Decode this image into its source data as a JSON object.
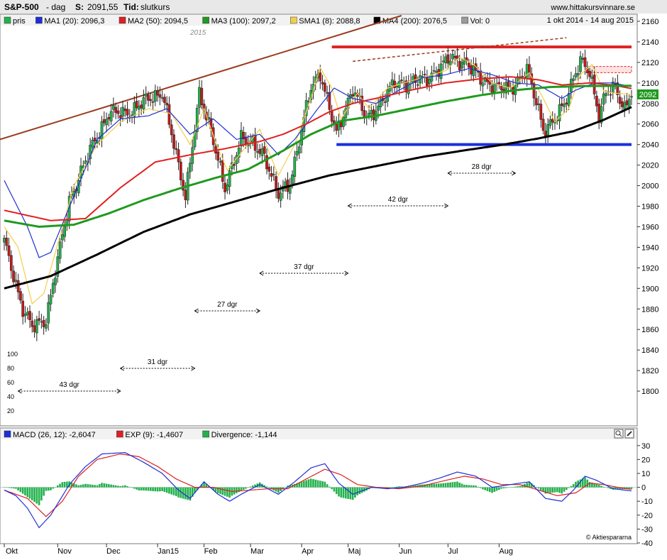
{
  "header": {
    "symbol": "S&P-500",
    "interval": "- dag",
    "s_label": "S:",
    "s_value": "2091,55",
    "tid_label": "Tid:",
    "tid_value": "slutkurs",
    "site": "www.hittakursvinnare.se"
  },
  "legend": {
    "items": [
      {
        "label": "pris",
        "color": "#22b14c"
      },
      {
        "label": "MA1 (20): 2096,3",
        "color": "#1e2fd6"
      },
      {
        "label": "MA2 (50): 2094,5",
        "color": "#e02020"
      },
      {
        "label": "MA3 (100): 2097,2",
        "color": "#1f9a1f"
      },
      {
        "label": "SMA1 (8): 2088,8",
        "color": "#f2cf4a"
      },
      {
        "label": "MA4 (200): 2076,5",
        "color": "#000000"
      },
      {
        "label": "Vol: 0",
        "color": "#9a9a9a"
      }
    ],
    "date_range": "1 okt 2014 - 14 aug 2015"
  },
  "macd_legend": {
    "items": [
      {
        "label": "MACD (26, 12): -2,6047",
        "color": "#1e2fd6"
      },
      {
        "label": "EXP (9): -1,4607",
        "color": "#e02020"
      },
      {
        "label": "Divergence: -1,144",
        "color": "#22b14c"
      }
    ]
  },
  "watermark": "2015",
  "copyright": "© Aktiespararna",
  "last_price_tag": "2092",
  "colors": {
    "up": "#22b14c",
    "down": "#c41a1a",
    "ma20": "#1e2fd6",
    "ma50": "#e02020",
    "ma100": "#1f9a1f",
    "sma8": "#f2cf4a",
    "ma200": "#000000",
    "resistance": "#e02020",
    "support": "#1a2fe0",
    "trendline": "#9a3a1c"
  },
  "chart_data": {
    "type": "candlestick",
    "price_axis": {
      "ylim": [
        1780,
        2160
      ],
      "ticks": [
        1800,
        1820,
        1840,
        1860,
        1880,
        1900,
        1920,
        1940,
        1960,
        1980,
        2000,
        2020,
        2040,
        2060,
        2080,
        2100,
        2120,
        2140,
        2160
      ]
    },
    "macd_axis": {
      "ylim": [
        -40,
        35
      ],
      "ticks": [
        -40,
        -30,
        -20,
        -10,
        0,
        10,
        20,
        30
      ]
    },
    "month_labels": [
      "Okt",
      "Nov",
      "Dec",
      "Jan15",
      "Feb",
      "Mar",
      "Apr",
      "Maj",
      "Jun",
      "Jul",
      "Aug"
    ],
    "volume_scale_labels": [
      "100",
      "80",
      "60",
      "40",
      "20"
    ],
    "anchors": {
      "price": [
        [
          0,
          1945
        ],
        [
          8,
          1880
        ],
        [
          12,
          1862
        ],
        [
          18,
          1870
        ],
        [
          28,
          1985
        ],
        [
          38,
          2040
        ],
        [
          45,
          2070
        ],
        [
          55,
          2072
        ],
        [
          62,
          2085
        ],
        [
          68,
          2090
        ],
        [
          78,
          1990
        ],
        [
          84,
          2088
        ],
        [
          89,
          2055
        ],
        [
          95,
          1995
        ],
        [
          102,
          2048
        ],
        [
          112,
          2030
        ],
        [
          118,
          1990
        ],
        [
          123,
          2003
        ],
        [
          132,
          2095
        ],
        [
          136,
          2110
        ],
        [
          140,
          2075
        ],
        [
          143,
          2050
        ],
        [
          150,
          2095
        ],
        [
          156,
          2065
        ],
        [
          162,
          2080
        ],
        [
          168,
          2100
        ],
        [
          175,
          2100
        ],
        [
          182,
          2105
        ],
        [
          188,
          2115
        ],
        [
          192,
          2125
        ],
        [
          198,
          2120
        ],
        [
          205,
          2105
        ],
        [
          212,
          2095
        ],
        [
          218,
          2095
        ],
        [
          225,
          2112
        ],
        [
          230,
          2075
        ],
        [
          232,
          2055
        ],
        [
          236,
          2060
        ],
        [
          241,
          2080
        ],
        [
          245,
          2105
        ],
        [
          248,
          2120
        ],
        [
          252,
          2110
        ],
        [
          256,
          2070
        ],
        [
          259,
          2090
        ],
        [
          263,
          2095
        ],
        [
          267,
          2075
        ],
        [
          270,
          2092
        ]
      ]
    },
    "moving_averages": {
      "MA20": [
        [
          0,
          2005
        ],
        [
          10,
          1960
        ],
        [
          15,
          1930
        ],
        [
          20,
          1935
        ],
        [
          30,
          1990
        ],
        [
          40,
          2045
        ],
        [
          50,
          2065
        ],
        [
          62,
          2068
        ],
        [
          70,
          2075
        ],
        [
          80,
          2050
        ],
        [
          90,
          2065
        ],
        [
          100,
          2045
        ],
        [
          110,
          2050
        ],
        [
          118,
          2030
        ],
        [
          125,
          2045
        ],
        [
          135,
          2075
        ],
        [
          142,
          2095
        ],
        [
          150,
          2085
        ],
        [
          160,
          2080
        ],
        [
          170,
          2093
        ],
        [
          180,
          2105
        ],
        [
          190,
          2108
        ],
        [
          200,
          2114
        ],
        [
          210,
          2108
        ],
        [
          220,
          2100
        ],
        [
          230,
          2098
        ],
        [
          240,
          2085
        ],
        [
          246,
          2093
        ],
        [
          254,
          2100
        ],
        [
          262,
          2100
        ],
        [
          270,
          2096.3
        ]
      ],
      "MA50": [
        [
          0,
          1976
        ],
        [
          20,
          1966
        ],
        [
          35,
          1968
        ],
        [
          50,
          1998
        ],
        [
          65,
          2023
        ],
        [
          80,
          2030
        ],
        [
          95,
          2036
        ],
        [
          110,
          2043
        ],
        [
          120,
          2050
        ],
        [
          130,
          2060
        ],
        [
          140,
          2072
        ],
        [
          150,
          2080
        ],
        [
          160,
          2085
        ],
        [
          175,
          2093
        ],
        [
          190,
          2100
        ],
        [
          205,
          2104
        ],
        [
          218,
          2106
        ],
        [
          230,
          2103
        ],
        [
          240,
          2098
        ],
        [
          252,
          2100
        ],
        [
          262,
          2098
        ],
        [
          270,
          2094.5
        ]
      ],
      "MA100": [
        [
          0,
          1966
        ],
        [
          15,
          1960
        ],
        [
          30,
          1962
        ],
        [
          45,
          1973
        ],
        [
          60,
          1986
        ],
        [
          75,
          1997
        ],
        [
          90,
          2007
        ],
        [
          105,
          2016
        ],
        [
          120,
          2034
        ],
        [
          132,
          2050
        ],
        [
          145,
          2063
        ],
        [
          160,
          2068
        ],
        [
          175,
          2075
        ],
        [
          190,
          2082
        ],
        [
          205,
          2088
        ],
        [
          220,
          2093
        ],
        [
          235,
          2096
        ],
        [
          250,
          2097
        ],
        [
          270,
          2097.2
        ]
      ],
      "SMA8": [
        [
          0,
          1960
        ],
        [
          6,
          1940
        ],
        [
          12,
          1885
        ],
        [
          17,
          1895
        ],
        [
          22,
          1935
        ],
        [
          30,
          2000
        ],
        [
          40,
          2040
        ],
        [
          50,
          2062
        ],
        [
          62,
          2075
        ],
        [
          72,
          2070
        ],
        [
          80,
          2040
        ],
        [
          86,
          2075
        ],
        [
          91,
          2042
        ],
        [
          96,
          2015
        ],
        [
          103,
          2035
        ],
        [
          110,
          2055
        ],
        [
          118,
          2010
        ],
        [
          125,
          2040
        ],
        [
          132,
          2085
        ],
        [
          136,
          2115
        ],
        [
          141,
          2095
        ],
        [
          145,
          2065
        ],
        [
          152,
          2090
        ],
        [
          157,
          2075
        ],
        [
          165,
          2095
        ],
        [
          172,
          2100
        ],
        [
          180,
          2105
        ],
        [
          190,
          2112
        ],
        [
          196,
          2125
        ],
        [
          202,
          2118
        ],
        [
          210,
          2100
        ],
        [
          218,
          2095
        ],
        [
          226,
          2110
        ],
        [
          232,
          2085
        ],
        [
          237,
          2062
        ],
        [
          243,
          2075
        ],
        [
          248,
          2108
        ],
        [
          253,
          2118
        ],
        [
          258,
          2092
        ],
        [
          263,
          2090
        ],
        [
          270,
          2088.8
        ]
      ],
      "MA4_200": [
        [
          0,
          1900
        ],
        [
          20,
          1912
        ],
        [
          40,
          1933
        ],
        [
          60,
          1955
        ],
        [
          80,
          1972
        ],
        [
          100,
          1985
        ],
        [
          120,
          1998
        ],
        [
          140,
          2010
        ],
        [
          160,
          2019
        ],
        [
          180,
          2028
        ],
        [
          200,
          2035
        ],
        [
          215,
          2040
        ],
        [
          230,
          2046
        ],
        [
          245,
          2053
        ],
        [
          258,
          2064
        ],
        [
          270,
          2076.5
        ]
      ]
    },
    "macd": {
      "MACD": [
        [
          0,
          -2
        ],
        [
          5,
          -6
        ],
        [
          10,
          -15
        ],
        [
          15,
          -29
        ],
        [
          20,
          -20
        ],
        [
          28,
          2
        ],
        [
          35,
          15
        ],
        [
          42,
          24
        ],
        [
          52,
          25
        ],
        [
          60,
          18
        ],
        [
          68,
          10
        ],
        [
          75,
          -2
        ],
        [
          80,
          -8
        ],
        [
          86,
          4
        ],
        [
          92,
          -5
        ],
        [
          97,
          -10
        ],
        [
          102,
          -5
        ],
        [
          110,
          2
        ],
        [
          118,
          -5
        ],
        [
          125,
          4
        ],
        [
          132,
          14
        ],
        [
          138,
          17
        ],
        [
          144,
          3
        ],
        [
          150,
          -5
        ],
        [
          158,
          0
        ],
        [
          165,
          -1
        ],
        [
          172,
          0
        ],
        [
          180,
          3
        ],
        [
          188,
          7
        ],
        [
          195,
          11
        ],
        [
          203,
          8
        ],
        [
          210,
          0
        ],
        [
          218,
          2
        ],
        [
          226,
          4
        ],
        [
          233,
          -8
        ],
        [
          240,
          -10
        ],
        [
          245,
          -2
        ],
        [
          250,
          8
        ],
        [
          255,
          5
        ],
        [
          262,
          -1
        ],
        [
          270,
          -2.6
        ]
      ],
      "EXP": [
        [
          0,
          -2
        ],
        [
          10,
          -8
        ],
        [
          18,
          -21
        ],
        [
          25,
          -10
        ],
        [
          32,
          8
        ],
        [
          40,
          20
        ],
        [
          50,
          24
        ],
        [
          58,
          22
        ],
        [
          66,
          15
        ],
        [
          74,
          6
        ],
        [
          82,
          0
        ],
        [
          90,
          0
        ],
        [
          98,
          -3
        ],
        [
          106,
          -2
        ],
        [
          114,
          -1
        ],
        [
          122,
          -1
        ],
        [
          130,
          6
        ],
        [
          138,
          13
        ],
        [
          145,
          9
        ],
        [
          152,
          2
        ],
        [
          160,
          0
        ],
        [
          170,
          -1
        ],
        [
          180,
          1
        ],
        [
          190,
          5
        ],
        [
          198,
          8
        ],
        [
          206,
          6
        ],
        [
          214,
          2
        ],
        [
          222,
          2
        ],
        [
          230,
          -2
        ],
        [
          238,
          -6
        ],
        [
          246,
          -4
        ],
        [
          252,
          3
        ],
        [
          258,
          2
        ],
        [
          264,
          0
        ],
        [
          270,
          -1.5
        ]
      ],
      "divergence_note": "Divergence = MACD - EXP, drawn as green histogram"
    },
    "annotations": [
      {
        "text": "43 dgr",
        "from_day": 6,
        "to_day": 50
      },
      {
        "text": "31 dgr",
        "from_day": 50,
        "to_day": 82
      },
      {
        "text": "27 dgr",
        "from_day": 82,
        "to_day": 110
      },
      {
        "text": "37 dgr",
        "from_day": 110,
        "to_day": 148
      },
      {
        "text": "42 dgr",
        "from_day": 148,
        "to_day": 191
      },
      {
        "text": "28 dgr",
        "from_day": 191,
        "to_day": 220
      }
    ],
    "trend_lines": [
      {
        "name": "resistance",
        "y": 2135
      },
      {
        "name": "support",
        "y": 2040
      },
      {
        "name": "long-term-trendline"
      },
      {
        "name": "dashed-upper-trendline"
      }
    ]
  }
}
